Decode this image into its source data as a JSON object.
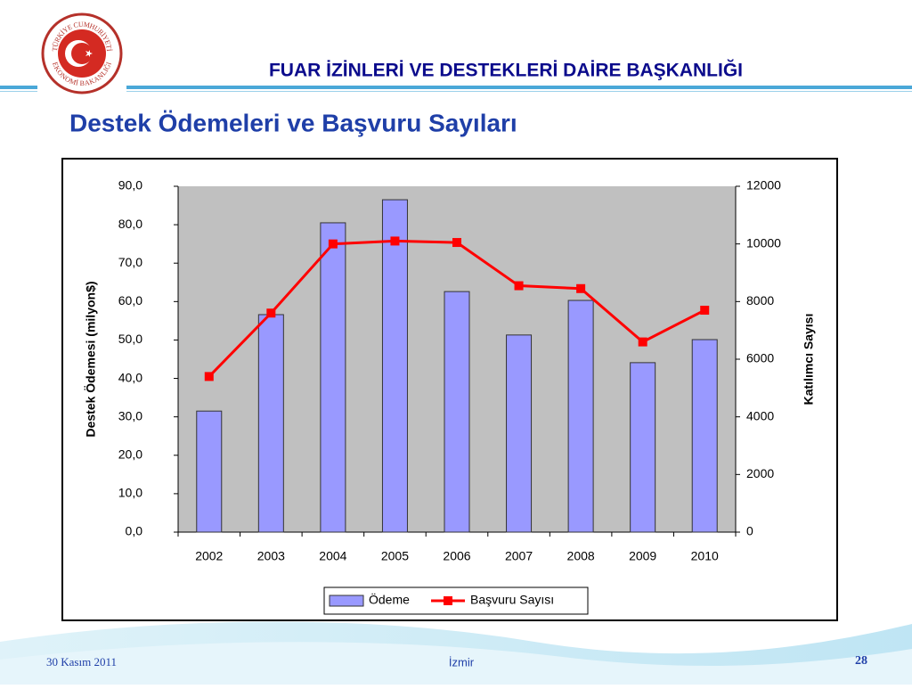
{
  "header": {
    "title": "FUAR İZİNLERİ VE DESTEKLERİ DAİRE BAŞKANLIĞI",
    "subtitle": "Destek Ödemeleri ve Başvuru Sayıları",
    "logo_top": "TÜRKİYE CUMHURİYETİ",
    "logo_bottom": "EKONOMİ BAKANLIĞI"
  },
  "footer": {
    "date": "30 Kasım 2011",
    "place": "İzmir",
    "page": "28"
  },
  "chart_data": {
    "type": "bar-line",
    "ylabel": "Destek Ödemesi (milyon$)",
    "y2label": "Katılımcı Sayısı",
    "categories": [
      "2002",
      "2003",
      "2004",
      "2005",
      "2006",
      "2007",
      "2008",
      "2009",
      "2010"
    ],
    "series": [
      {
        "name": "Ödeme",
        "type": "bar",
        "color": "#9999ff",
        "values": [
          31.5,
          56.6,
          80.5,
          86.5,
          62.6,
          51.3,
          60.3,
          44.1,
          50.1
        ]
      },
      {
        "name": "Başvuru Sayısı",
        "type": "line",
        "color": "#ff0000",
        "axis": "y2",
        "values": [
          5400,
          7600,
          10000,
          10100,
          10050,
          8550,
          8450,
          6600,
          7700
        ]
      }
    ],
    "ylim": [
      0,
      90
    ],
    "yticks": [
      {
        "value": 0,
        "label": "0,0"
      },
      {
        "value": 10,
        "label": "10,0"
      },
      {
        "value": 20,
        "label": "20,0"
      },
      {
        "value": 30,
        "label": "30,0"
      },
      {
        "value": 40,
        "label": "40,0"
      },
      {
        "value": 50,
        "label": "50,0"
      },
      {
        "value": 60,
        "label": "60,0"
      },
      {
        "value": 70,
        "label": "70,0"
      },
      {
        "value": 80,
        "label": "80,0"
      },
      {
        "value": 90,
        "label": "90,0"
      }
    ],
    "y2lim": [
      0,
      12000
    ],
    "y2ticks": [
      0,
      2000,
      4000,
      6000,
      8000,
      10000,
      12000
    ],
    "grid": false,
    "legend": "bottom"
  }
}
